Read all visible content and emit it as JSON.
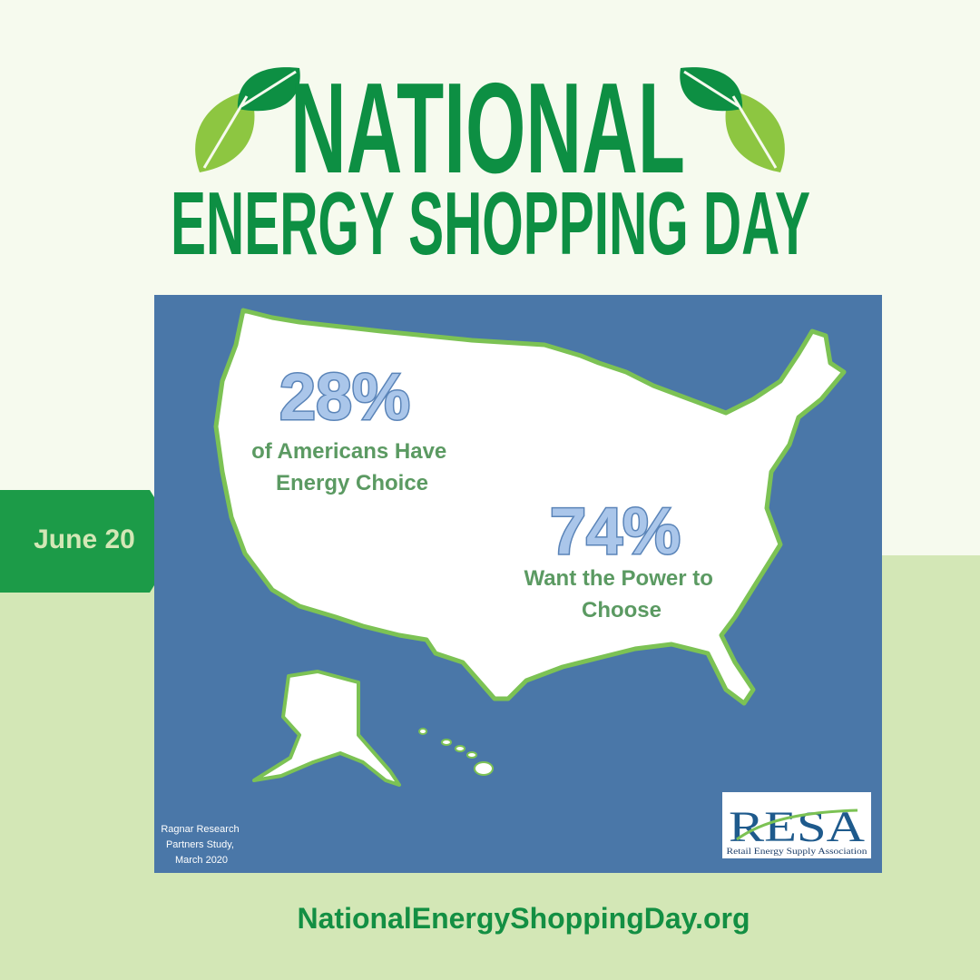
{
  "header": {
    "title": "NATIONAL",
    "subtitle": "ENERGY SHOPPING DAY"
  },
  "date_tab": "June 20",
  "stats": [
    {
      "figure": "28%",
      "lines": [
        "of Americans Have",
        "Energy Choice"
      ]
    },
    {
      "figure": "74%",
      "lines": [
        "Want the Power to",
        "Choose"
      ]
    }
  ],
  "source": [
    "Ragnar Research",
    "Partners Study,",
    "March 2020"
  ],
  "logo": {
    "name": "RESA",
    "tagline": "Retail Energy Supply Association"
  },
  "footer": "NationalEnergyShoppingDay.org"
}
